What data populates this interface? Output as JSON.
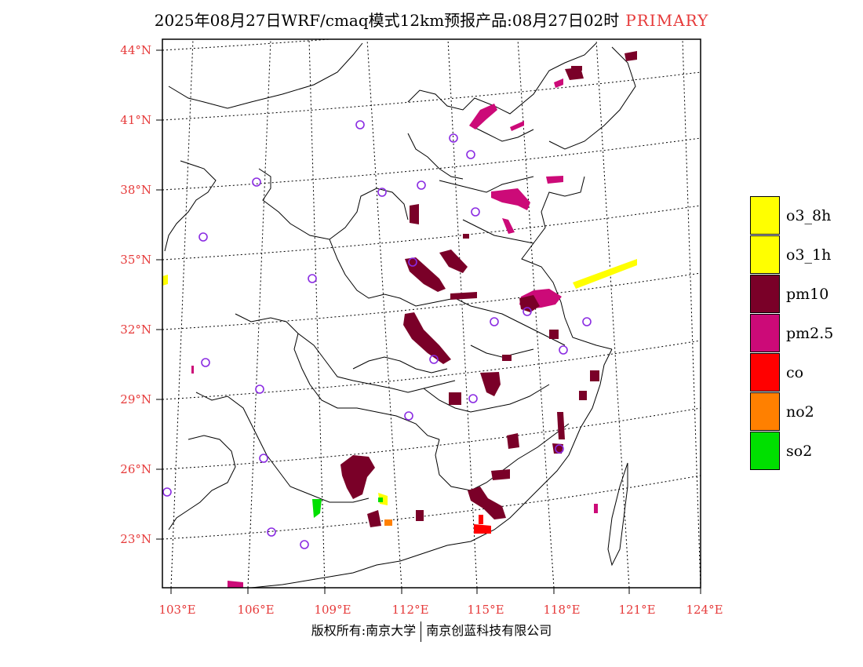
{
  "header": {
    "title": "2025年08月27日WRF/cmaq模式12km预报产品:08月27日02时",
    "tag": "PRIMARY"
  },
  "map": {
    "lat_labels": [
      "44°N",
      "41°N",
      "38°N",
      "35°N",
      "32°N",
      "29°N",
      "26°N",
      "23°N"
    ],
    "lon_labels": [
      "103°E",
      "106°E",
      "109°E",
      "112°E",
      "115°E",
      "118°E",
      "121°E",
      "124°E"
    ],
    "colors": {
      "o3_8h": "#ffff00",
      "o3_1h": "#ffff00",
      "pm10": "#7a0028",
      "pm2.5": "#cc0a78",
      "co": "#ff0000",
      "no2": "#ff8000",
      "so2": "#00e000",
      "station": "#8a2be2",
      "label": "#e63a3a"
    }
  },
  "legend": {
    "items": [
      {
        "label": "o3_8h",
        "color": "#ffff00"
      },
      {
        "label": "o3_1h",
        "color": "#ffff00"
      },
      {
        "label": "pm10",
        "color": "#7a0028"
      },
      {
        "label": "pm2.5",
        "color": "#cc0a78"
      },
      {
        "label": "co",
        "color": "#ff0000"
      },
      {
        "label": "no2",
        "color": "#ff8000"
      },
      {
        "label": "so2",
        "color": "#00e000"
      }
    ]
  },
  "footer": {
    "left": "版权所有:南京大学",
    "right": "南京创蓝科技有限公司"
  }
}
